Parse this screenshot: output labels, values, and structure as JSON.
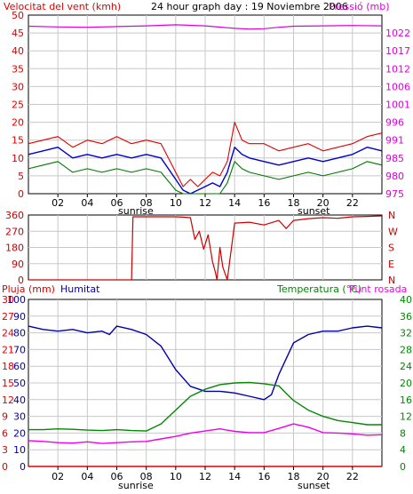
{
  "colors": {
    "wind": "#e00000",
    "gust": "#e00000",
    "wind_avg": "#0000cc",
    "wind_min": "#007700",
    "pressure": "#dd00dd",
    "direction": "#cc0000",
    "rain": "#e00000",
    "humidity": "#0000aa",
    "temperature": "#008800",
    "dewpoint": "#ee00ee",
    "frame": "#000000",
    "grid": "#c8c8c8"
  },
  "chart_data": [
    {
      "type": "line",
      "title": "24 hour graph day : 19 Noviembre 2006",
      "ylabel": "Velocitat del vent (kmh)",
      "y2label": "Pressió (mb)",
      "x_ticks": [
        "02",
        "04",
        "06",
        "08",
        "10",
        "12",
        "14",
        "16",
        "18",
        "20",
        "22"
      ],
      "xlim_hours": [
        0,
        24
      ],
      "sunrise_label": "sunrise",
      "sunset_label": "sunset",
      "sunrise_hour": 7.0,
      "sunset_hour": 17.5,
      "ylim": [
        0,
        50
      ],
      "y_ticks": [
        "0",
        "5",
        "10",
        "15",
        "20",
        "25",
        "30",
        "35",
        "40",
        "45",
        "50"
      ],
      "y2lim": [
        975,
        1025
      ],
      "y2_ticks": [
        "975",
        "980",
        "985",
        "991",
        "996",
        "1001",
        "1006",
        "1012",
        "1017",
        "1022"
      ],
      "series": [
        {
          "key": "gust",
          "hours": [
            0,
            1,
            2,
            3,
            4,
            5,
            6,
            7,
            8,
            9,
            10,
            10.5,
            11,
            11.5,
            12,
            12.5,
            13,
            13.5,
            14,
            14.5,
            15,
            16,
            17,
            18,
            19,
            20,
            21,
            22,
            23,
            24
          ],
          "values": [
            14,
            15,
            16,
            13,
            15,
            14,
            16,
            14,
            15,
            14,
            6,
            2,
            4,
            2,
            4,
            6,
            5,
            9,
            20,
            15,
            14,
            14,
            12,
            13,
            14,
            12,
            13,
            14,
            16,
            17
          ]
        },
        {
          "key": "wind_avg",
          "hours": [
            0,
            1,
            2,
            3,
            4,
            5,
            6,
            7,
            8,
            9,
            10,
            10.5,
            11,
            11.5,
            12,
            12.5,
            13,
            13.5,
            14,
            14.5,
            15,
            16,
            17,
            18,
            19,
            20,
            21,
            22,
            23,
            24
          ],
          "values": [
            11,
            12,
            13,
            10,
            11,
            10,
            11,
            10,
            11,
            10,
            4,
            1,
            0,
            1,
            2,
            3,
            2,
            6,
            13,
            11,
            10,
            9,
            8,
            9,
            10,
            9,
            10,
            11,
            13,
            12
          ]
        },
        {
          "key": "wind_min",
          "hours": [
            0,
            1,
            2,
            3,
            4,
            5,
            6,
            7,
            8,
            9,
            10,
            10.5,
            11,
            11.5,
            12,
            12.5,
            13,
            13.5,
            14,
            14.5,
            15,
            16,
            17,
            18,
            19,
            20,
            21,
            22,
            23,
            24
          ],
          "values": [
            7,
            8,
            9,
            6,
            7,
            6,
            7,
            6,
            7,
            6,
            1,
            0,
            0,
            0,
            0,
            0,
            0,
            3,
            9,
            7,
            6,
            5,
            4,
            5,
            6,
            5,
            6,
            7,
            9,
            8
          ]
        },
        {
          "key": "pressure",
          "hours": [
            0,
            2,
            4,
            6,
            8,
            10,
            12,
            14,
            15,
            16,
            17,
            18,
            20,
            22,
            24
          ],
          "values": [
            1021.9,
            1021.7,
            1021.6,
            1021.8,
            1022.0,
            1022.3,
            1022.0,
            1021.3,
            1021.1,
            1021.2,
            1021.6,
            1021.9,
            1022.0,
            1022.1,
            1022.0
          ]
        }
      ]
    },
    {
      "type": "line",
      "ylabel": "wind direction (degrees)",
      "ylim": [
        0,
        360
      ],
      "y_ticks": [
        "0",
        "90",
        "180",
        "270",
        "360"
      ],
      "y2_ticks": [
        "N",
        "E",
        "S",
        "W",
        "N"
      ],
      "series": [
        {
          "key": "direction",
          "hours": [
            0,
            7.0,
            7.1,
            10.0,
            10.5,
            11.0,
            11.3,
            11.6,
            11.9,
            12.2,
            12.5,
            12.7,
            12.8,
            13.0,
            13.2,
            13.5,
            14,
            15,
            16,
            17,
            17.5,
            18,
            19,
            20,
            21,
            22,
            23,
            24
          ],
          "values": [
            0,
            0,
            350,
            350,
            348,
            345,
            225,
            270,
            170,
            250,
            100,
            40,
            0,
            180,
            70,
            0,
            315,
            320,
            305,
            330,
            285,
            330,
            340,
            345,
            342,
            350,
            352,
            355
          ]
        }
      ]
    },
    {
      "type": "line",
      "title_left": "Pluja (mm)",
      "title_left2": "Humitat",
      "title_right": "Temperatura (°C)",
      "title_right2": "Punt rosada",
      "x_ticks": [
        "02",
        "04",
        "06",
        "08",
        "10",
        "12",
        "14",
        "16",
        "18",
        "20",
        "22"
      ],
      "sunrise_label": "sunrise",
      "sunset_label": "sunset",
      "ylim_rain": [
        0,
        30
      ],
      "rain_ticks": [
        "0",
        "3",
        "6",
        "9",
        "12",
        "15",
        "18",
        "21",
        "24",
        "27",
        "30"
      ],
      "ylim_humidity": [
        0,
        100
      ],
      "humidity_ticks": [
        "0",
        "10",
        "20",
        "30",
        "40",
        "50",
        "60",
        "70",
        "80",
        "90",
        "100"
      ],
      "ylim_temp": [
        0,
        40
      ],
      "temp_ticks": [
        "0",
        "4",
        "8",
        "12",
        "16",
        "20",
        "24",
        "28",
        "32",
        "36",
        "40"
      ],
      "series": [
        {
          "key": "rain",
          "hours": [
            0,
            24
          ],
          "values": [
            0,
            0
          ]
        },
        {
          "key": "humidity",
          "hours": [
            0,
            1,
            2,
            3,
            4,
            5,
            5.5,
            6,
            7,
            8,
            9,
            10,
            11,
            12,
            13,
            14,
            15,
            16,
            16.5,
            17,
            18,
            19,
            20,
            21,
            22,
            23,
            24
          ],
          "values": [
            84,
            82,
            81,
            82,
            80,
            81,
            79,
            84,
            82,
            79,
            72,
            58,
            48,
            45,
            45,
            44,
            42,
            40,
            43,
            55,
            74,
            79,
            81,
            81,
            83,
            84,
            83
          ]
        },
        {
          "key": "temperature",
          "hours": [
            0,
            1,
            2,
            3,
            4,
            5,
            6,
            7,
            8,
            9,
            10,
            11,
            12,
            13,
            14,
            15,
            16,
            17,
            17.5,
            18,
            19,
            20,
            21,
            22,
            23,
            24
          ],
          "values": [
            8.8,
            8.8,
            9.0,
            8.9,
            8.7,
            8.6,
            8.8,
            8.6,
            8.5,
            10.2,
            13.5,
            16.8,
            18.5,
            19.6,
            20.0,
            20.1,
            19.8,
            19.3,
            17.5,
            15.8,
            13.5,
            12.0,
            11.0,
            10.5,
            10.0,
            10.0
          ]
        },
        {
          "key": "dewpoint",
          "hours": [
            0,
            1,
            2,
            3,
            4,
            5,
            6,
            7,
            8,
            9,
            10,
            11,
            12,
            13,
            14,
            15,
            16,
            17,
            18,
            19,
            20,
            21,
            22,
            23,
            24
          ],
          "values": [
            6.2,
            6.0,
            5.7,
            5.6,
            5.9,
            5.5,
            5.7,
            5.9,
            6.0,
            6.6,
            7.2,
            8.0,
            8.5,
            9.0,
            8.4,
            8.1,
            8.1,
            9.1,
            10.2,
            9.4,
            8.1,
            8.0,
            7.8,
            7.5,
            7.6
          ]
        }
      ]
    }
  ]
}
